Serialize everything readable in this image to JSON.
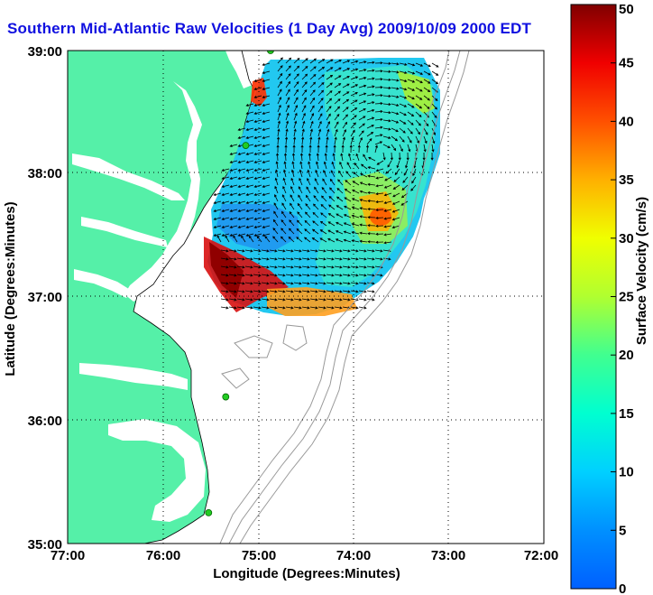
{
  "title": "Southern Mid-Atlantic Raw Velocities (1 Day Avg) 2009/10/09 2000 EDT",
  "colors": {
    "land": "#55f0a8",
    "title": "#1010e0",
    "site_marker": "#22cc22",
    "bathymetry": "#999999"
  },
  "chart_data": {
    "type": "heatmap",
    "xlabel": "Longitude (Degrees:Minutes)",
    "ylabel": "Latitude (Degrees:Minutes)",
    "xlim": [
      -77,
      -72
    ],
    "ylim": [
      35,
      39
    ],
    "x_ticks": [
      "77:00",
      "76:00",
      "75:00",
      "74:00",
      "73:00",
      "72:00"
    ],
    "y_ticks": [
      "39:00",
      "38:00",
      "37:00",
      "36:00",
      "35:00"
    ],
    "grid": "dotted",
    "colorbar": {
      "label": "Surface Velocity (cm/s)",
      "min": 0,
      "max": 50,
      "ticks": [
        "50",
        "45",
        "40",
        "35",
        "30",
        "25",
        "20",
        "15",
        "10",
        "5",
        "0"
      ]
    },
    "radar_sites": [
      {
        "lon": -74.87,
        "lat": 39.0
      },
      {
        "lon": -75.13,
        "lat": 38.23
      },
      {
        "lon": -75.34,
        "lat": 36.19
      },
      {
        "lon": -75.52,
        "lat": 35.25
      }
    ]
  }
}
